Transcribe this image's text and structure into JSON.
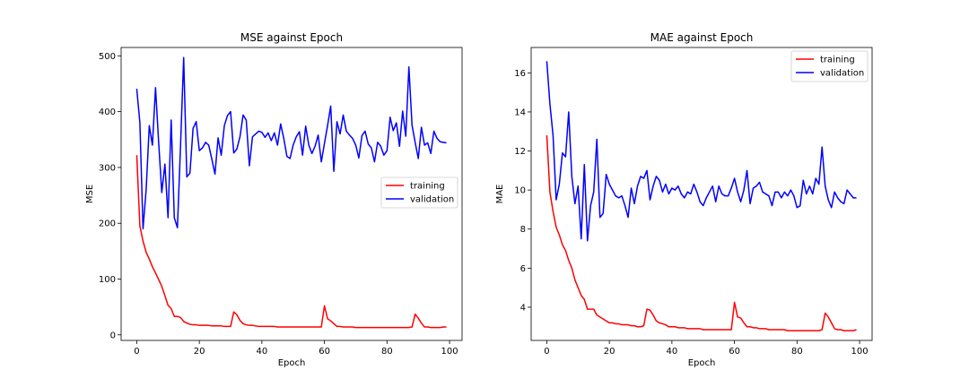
{
  "chart_data": [
    {
      "type": "line",
      "title": "MSE against Epoch",
      "xlabel": "Epoch",
      "ylabel": "MSE",
      "xlim": [
        -5,
        104
      ],
      "ylim": [
        -10,
        515
      ],
      "xticks": [
        0,
        20,
        40,
        60,
        80,
        100
      ],
      "yticks": [
        0,
        100,
        200,
        300,
        400,
        500
      ],
      "legend_position": "center-right",
      "grid": false,
      "series": [
        {
          "name": "training",
          "color": "#ff0000",
          "x": [
            0,
            1,
            2,
            3,
            4,
            5,
            6,
            7,
            8,
            9,
            10,
            11,
            12,
            13,
            14,
            15,
            16,
            17,
            18,
            19,
            20,
            21,
            22,
            23,
            24,
            25,
            26,
            27,
            28,
            29,
            30,
            31,
            32,
            33,
            34,
            35,
            36,
            37,
            38,
            39,
            40,
            41,
            42,
            43,
            44,
            45,
            46,
            47,
            48,
            49,
            50,
            51,
            52,
            53,
            54,
            55,
            56,
            57,
            58,
            59,
            60,
            61,
            62,
            63,
            64,
            65,
            66,
            67,
            68,
            69,
            70,
            71,
            72,
            73,
            74,
            75,
            76,
            77,
            78,
            79,
            80,
            81,
            82,
            83,
            84,
            85,
            86,
            87,
            88,
            89,
            90,
            91,
            92,
            93,
            94,
            95,
            96,
            97,
            98,
            99
          ],
          "values": [
            322,
            195,
            168,
            148,
            136,
            122,
            111,
            99,
            87,
            70,
            53,
            47,
            33,
            33,
            31,
            24,
            21,
            19,
            18,
            18,
            17,
            17,
            17,
            17,
            16,
            16,
            16,
            16,
            15,
            15,
            15,
            41,
            36,
            26,
            20,
            18,
            17,
            17,
            16,
            15,
            15,
            15,
            15,
            15,
            15,
            14,
            14,
            14,
            14,
            14,
            14,
            14,
            14,
            14,
            14,
            14,
            14,
            14,
            14,
            14,
            52,
            29,
            25,
            20,
            15,
            15,
            14,
            14,
            14,
            14,
            13,
            13,
            13,
            13,
            13,
            13,
            13,
            13,
            13,
            13,
            13,
            13,
            13,
            13,
            13,
            13,
            13,
            13,
            14,
            37,
            30,
            21,
            14,
            14,
            13,
            13,
            13,
            13,
            14,
            14
          ]
        },
        {
          "name": "validation",
          "color": "#0000ff",
          "x": [
            0,
            1,
            2,
            3,
            4,
            5,
            6,
            7,
            8,
            9,
            10,
            11,
            12,
            13,
            14,
            15,
            16,
            17,
            18,
            19,
            20,
            21,
            22,
            23,
            24,
            25,
            26,
            27,
            28,
            29,
            30,
            31,
            32,
            33,
            34,
            35,
            36,
            37,
            38,
            39,
            40,
            41,
            42,
            43,
            44,
            45,
            46,
            47,
            48,
            49,
            50,
            51,
            52,
            53,
            54,
            55,
            56,
            57,
            58,
            59,
            60,
            61,
            62,
            63,
            64,
            65,
            66,
            67,
            68,
            69,
            70,
            71,
            72,
            73,
            74,
            75,
            76,
            77,
            78,
            79,
            80,
            81,
            82,
            83,
            84,
            85,
            86,
            87,
            88,
            89,
            90,
            91,
            92,
            93,
            94,
            95,
            96,
            97,
            98,
            99
          ],
          "values": [
            441,
            380,
            190,
            260,
            375,
            340,
            443,
            345,
            255,
            306,
            210,
            385,
            210,
            192,
            340,
            497,
            283,
            290,
            370,
            382,
            330,
            335,
            345,
            340,
            315,
            288,
            353,
            322,
            375,
            393,
            400,
            326,
            333,
            355,
            394,
            385,
            303,
            355,
            360,
            365,
            363,
            354,
            362,
            348,
            362,
            340,
            378,
            352,
            320,
            316,
            340,
            355,
            364,
            322,
            374,
            340,
            325,
            338,
            358,
            310,
            343,
            375,
            410,
            293,
            382,
            360,
            394,
            365,
            358,
            352,
            340,
            317,
            357,
            365,
            342,
            335,
            310,
            345,
            338,
            322,
            330,
            390,
            366,
            380,
            338,
            401,
            356,
            480,
            376,
            345,
            316,
            372,
            340,
            344,
            325,
            365,
            352,
            346,
            345,
            344
          ]
        }
      ]
    },
    {
      "type": "line",
      "title": "MAE against Epoch",
      "xlabel": "Epoch",
      "ylabel": "MAE",
      "xlim": [
        -5,
        104
      ],
      "ylim": [
        2.3,
        17.3
      ],
      "xticks": [
        0,
        20,
        40,
        60,
        80,
        100
      ],
      "yticks": [
        4,
        6,
        8,
        10,
        12,
        14,
        16
      ],
      "legend_position": "top-right",
      "grid": false,
      "series": [
        {
          "name": "training",
          "color": "#ff0000",
          "x": [
            0,
            1,
            2,
            3,
            4,
            5,
            6,
            7,
            8,
            9,
            10,
            11,
            12,
            13,
            14,
            15,
            16,
            17,
            18,
            19,
            20,
            21,
            22,
            23,
            24,
            25,
            26,
            27,
            28,
            29,
            30,
            31,
            32,
            33,
            34,
            35,
            36,
            37,
            38,
            39,
            40,
            41,
            42,
            43,
            44,
            45,
            46,
            47,
            48,
            49,
            50,
            51,
            52,
            53,
            54,
            55,
            56,
            57,
            58,
            59,
            60,
            61,
            62,
            63,
            64,
            65,
            66,
            67,
            68,
            69,
            70,
            71,
            72,
            73,
            74,
            75,
            76,
            77,
            78,
            79,
            80,
            81,
            82,
            83,
            84,
            85,
            86,
            87,
            88,
            89,
            90,
            91,
            92,
            93,
            94,
            95,
            96,
            97,
            98,
            99
          ],
          "values": [
            12.8,
            9.9,
            8.9,
            8.1,
            7.7,
            7.2,
            6.9,
            6.4,
            6.0,
            5.4,
            5.0,
            4.6,
            4.4,
            3.9,
            3.9,
            3.9,
            3.6,
            3.5,
            3.4,
            3.3,
            3.2,
            3.2,
            3.15,
            3.15,
            3.1,
            3.1,
            3.1,
            3.05,
            3.05,
            3.0,
            3.0,
            3.05,
            3.9,
            3.85,
            3.6,
            3.3,
            3.2,
            3.15,
            3.1,
            3.0,
            3.0,
            3.0,
            2.95,
            2.95,
            2.95,
            2.9,
            2.9,
            2.9,
            2.9,
            2.9,
            2.85,
            2.85,
            2.85,
            2.85,
            2.85,
            2.85,
            2.85,
            2.85,
            2.85,
            2.85,
            4.25,
            3.5,
            3.45,
            3.2,
            3.0,
            3.0,
            2.95,
            2.95,
            2.9,
            2.9,
            2.9,
            2.85,
            2.85,
            2.85,
            2.85,
            2.85,
            2.85,
            2.8,
            2.8,
            2.8,
            2.8,
            2.8,
            2.8,
            2.8,
            2.8,
            2.8,
            2.8,
            2.8,
            2.85,
            3.7,
            3.5,
            3.2,
            2.9,
            2.85,
            2.85,
            2.8,
            2.8,
            2.8,
            2.8,
            2.85
          ]
        },
        {
          "name": "validation",
          "color": "#0000ff",
          "x": [
            0,
            1,
            2,
            3,
            4,
            5,
            6,
            7,
            8,
            9,
            10,
            11,
            12,
            13,
            14,
            15,
            16,
            17,
            18,
            19,
            20,
            21,
            22,
            23,
            24,
            25,
            26,
            27,
            28,
            29,
            30,
            31,
            32,
            33,
            34,
            35,
            36,
            37,
            38,
            39,
            40,
            41,
            42,
            43,
            44,
            45,
            46,
            47,
            48,
            49,
            50,
            51,
            52,
            53,
            54,
            55,
            56,
            57,
            58,
            59,
            60,
            61,
            62,
            63,
            64,
            65,
            66,
            67,
            68,
            69,
            70,
            71,
            72,
            73,
            74,
            75,
            76,
            77,
            78,
            79,
            80,
            81,
            82,
            83,
            84,
            85,
            86,
            87,
            88,
            89,
            90,
            91,
            92,
            93,
            94,
            95,
            96,
            97,
            98,
            99
          ],
          "values": [
            16.6,
            14.4,
            12.8,
            9.5,
            10.3,
            11.9,
            11.7,
            14.0,
            10.7,
            9.3,
            10.2,
            7.5,
            11.3,
            7.4,
            9.2,
            9.9,
            12.6,
            8.6,
            8.8,
            10.8,
            10.3,
            10.0,
            9.7,
            9.6,
            9.7,
            9.2,
            8.6,
            10.1,
            9.3,
            10.2,
            10.7,
            10.6,
            11.0,
            9.5,
            10.2,
            10.7,
            10.5,
            9.9,
            10.3,
            9.8,
            10.1,
            10.0,
            10.2,
            9.8,
            9.6,
            9.9,
            9.8,
            10.3,
            9.9,
            9.4,
            9.2,
            9.6,
            9.9,
            10.2,
            9.4,
            10.2,
            9.8,
            9.7,
            9.7,
            10.1,
            10.6,
            9.9,
            9.4,
            10.0,
            11.0,
            9.3,
            10.1,
            10.2,
            10.4,
            9.9,
            9.8,
            9.7,
            9.2,
            9.9,
            9.9,
            9.6,
            9.9,
            9.7,
            10.0,
            9.7,
            9.1,
            9.2,
            10.5,
            9.8,
            10.2,
            9.8,
            10.6,
            10.3,
            12.2,
            10.2,
            9.5,
            9.1,
            9.9,
            9.6,
            9.4,
            9.3,
            10.0,
            9.8,
            9.6,
            9.6
          ]
        }
      ]
    }
  ]
}
